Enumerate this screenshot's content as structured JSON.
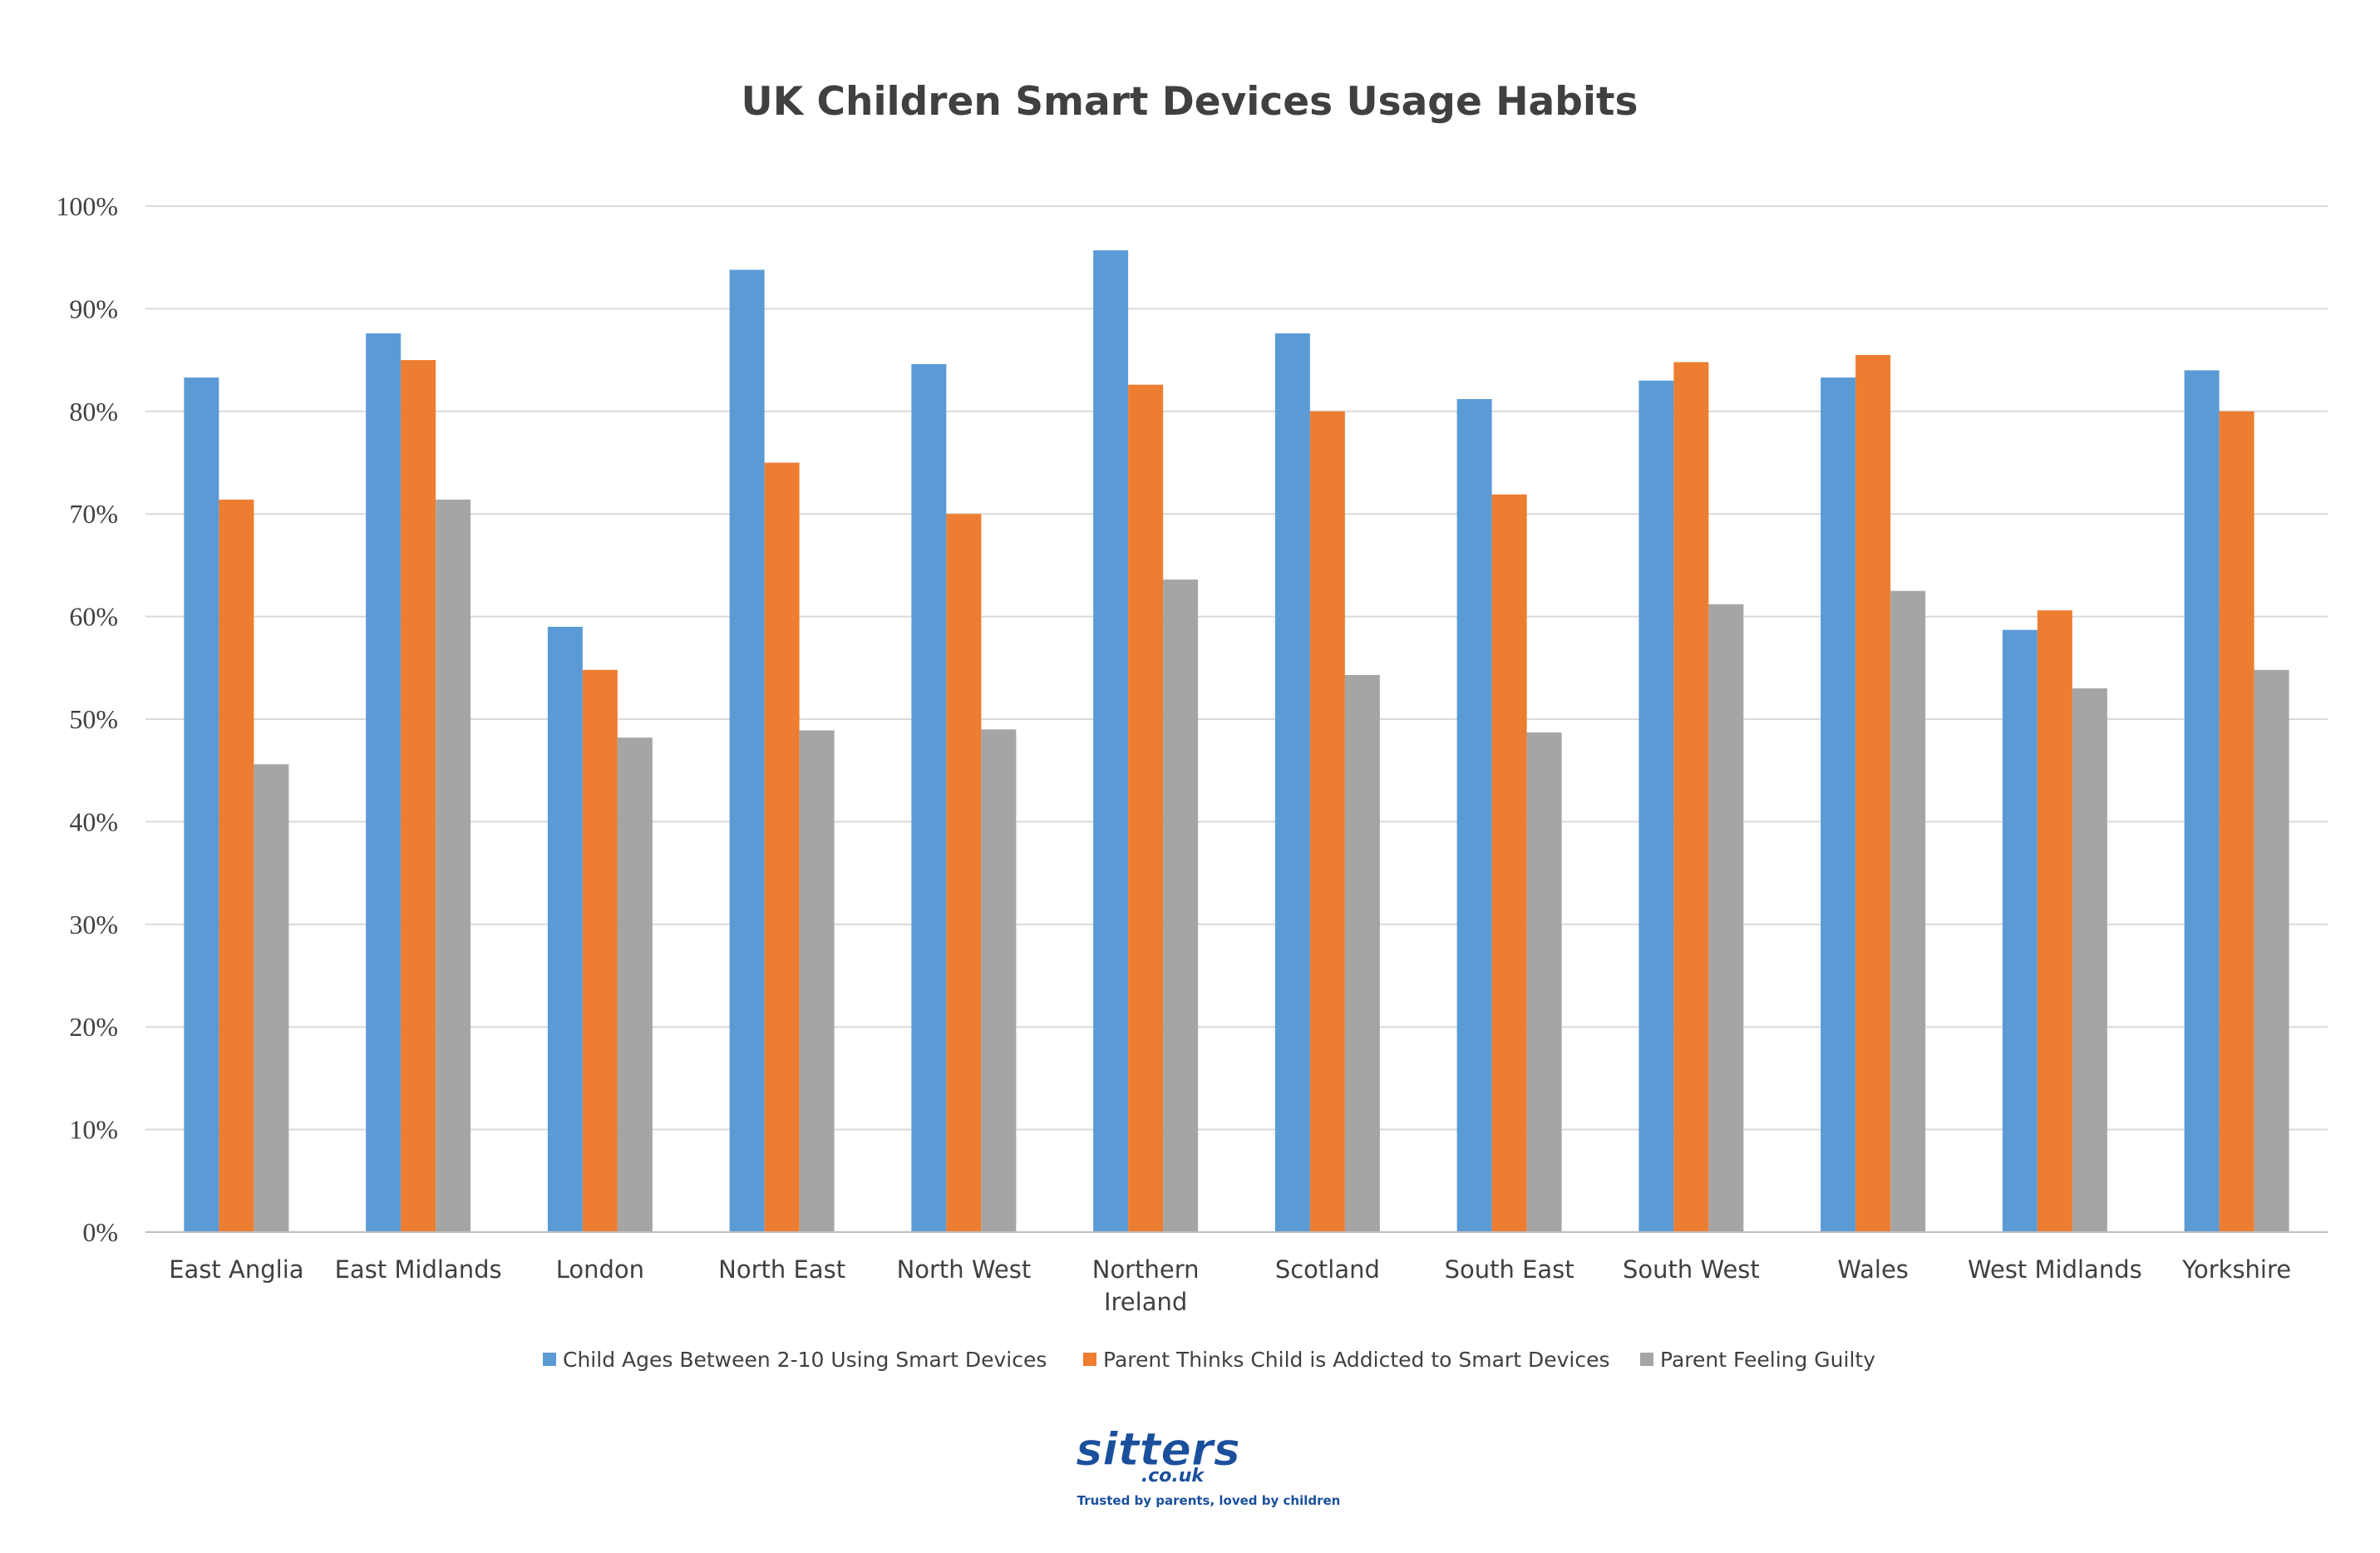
{
  "chart_data": {
    "type": "bar",
    "title": "UK Children Smart Devices Usage Habits",
    "xlabel": "",
    "ylabel": "",
    "ylim": [
      0,
      1
    ],
    "yticks": [
      "0%",
      "10%",
      "20%",
      "30%",
      "40%",
      "50%",
      "60%",
      "70%",
      "80%",
      "90%",
      "100%"
    ],
    "grid": true,
    "legend_position": "bottom",
    "categories": [
      [
        "East Anglia"
      ],
      [
        "East Midlands"
      ],
      [
        "London"
      ],
      [
        "North East"
      ],
      [
        "North West"
      ],
      [
        "Northern",
        "Ireland"
      ],
      [
        "Scotland"
      ],
      [
        "South East"
      ],
      [
        "South West"
      ],
      [
        "Wales"
      ],
      [
        "West Midlands"
      ],
      [
        "Yorkshire"
      ]
    ],
    "series": [
      {
        "name": "Child Ages Between 2-10 Using Smart Devices",
        "color": "#5b9bd5",
        "values": [
          0.833,
          0.876,
          0.59,
          0.938,
          0.846,
          0.957,
          0.876,
          0.812,
          0.83,
          0.833,
          0.587,
          0.84
        ]
      },
      {
        "name": "Parent Thinks Child is Addicted to Smart Devices",
        "color": "#ed7d31",
        "values": [
          0.714,
          0.85,
          0.548,
          0.75,
          0.7,
          0.826,
          0.8,
          0.719,
          0.848,
          0.855,
          0.606,
          0.8
        ]
      },
      {
        "name": "Parent Feeling Guilty",
        "color": "#a5a5a5",
        "values": [
          0.456,
          0.714,
          0.482,
          0.489,
          0.49,
          0.636,
          0.543,
          0.487,
          0.612,
          0.625,
          0.53,
          0.548
        ]
      }
    ]
  },
  "logo": {
    "name": "sitters",
    "domain": ".co.uk",
    "tagline": "Trusted by parents, loved by children",
    "color": "#1a4f9c"
  }
}
